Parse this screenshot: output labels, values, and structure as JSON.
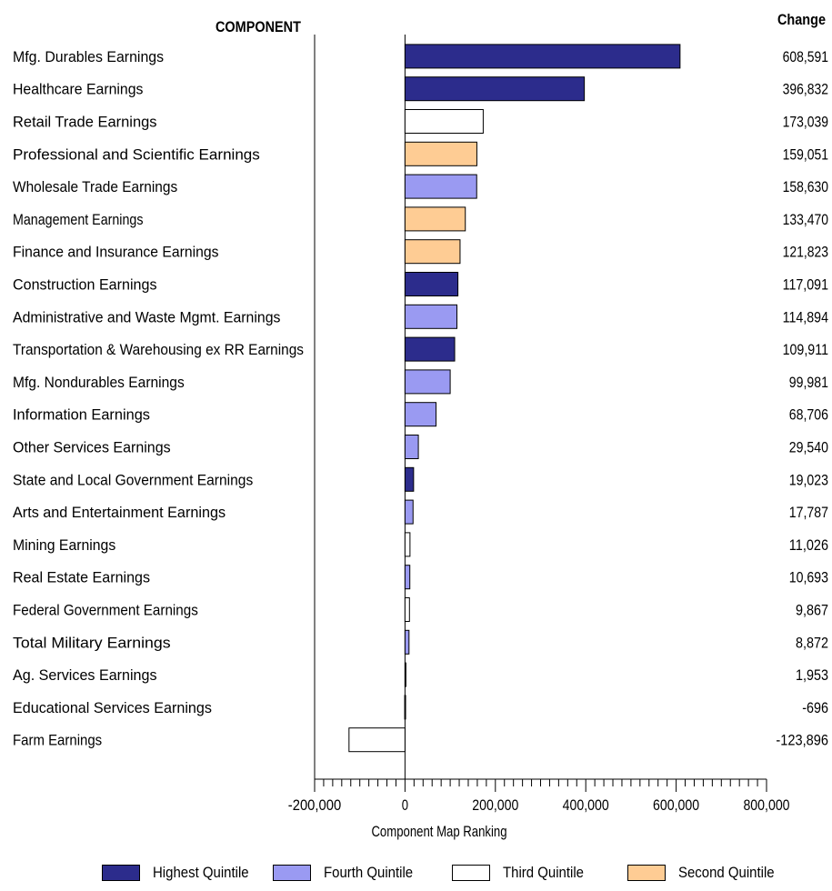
{
  "header": {
    "component_label": "COMPONENT",
    "change_label": "Change"
  },
  "chart_data": {
    "type": "bar",
    "orientation": "horizontal",
    "categories": [
      "Mfg. Durables Earnings",
      "Healthcare Earnings",
      "Retail Trade Earnings",
      "Professional and Scientific Earnings",
      "Wholesale Trade Earnings",
      "Management Earnings",
      "Finance and Insurance Earnings",
      "Construction Earnings",
      "Administrative and Waste Mgmt. Earnings",
      "Transportation & Warehousing ex RR Earnings",
      "Mfg. Nondurables Earnings",
      "Information Earnings",
      "Other Services Earnings",
      "State and Local Government Earnings",
      "Arts and Entertainment Earnings",
      "Mining Earnings",
      "Real Estate Earnings",
      "Federal Government Earnings",
      "Total Military Earnings",
      "Ag. Services Earnings",
      "Educational Services Earnings",
      "Farm Earnings"
    ],
    "values": [
      608591,
      396832,
      173039,
      159051,
      158630,
      133470,
      121823,
      117091,
      114894,
      109911,
      99981,
      68706,
      29540,
      19023,
      17787,
      11026,
      10693,
      9867,
      8872,
      1953,
      -696,
      -123896
    ],
    "value_labels": [
      "608,591",
      "396,832",
      "173,039",
      "159,051",
      "158,630",
      "133,470",
      "121,823",
      "117,091",
      "114,894",
      "109,911",
      "99,981",
      "68,706",
      "29,540",
      "19,023",
      "17,787",
      "11,026",
      "10,693",
      "9,867",
      "8,872",
      "1,953",
      "-696",
      "-123,896"
    ],
    "quintile": [
      "Highest Quintile",
      "Highest Quintile",
      "Third Quintile",
      "Second Quintile",
      "Fourth Quintile",
      "Second Quintile",
      "Second Quintile",
      "Highest Quintile",
      "Fourth Quintile",
      "Highest Quintile",
      "Fourth Quintile",
      "Fourth Quintile",
      "Fourth Quintile",
      "Highest Quintile",
      "Fourth Quintile",
      "Third Quintile",
      "Fourth Quintile",
      "Third Quintile",
      "Fourth Quintile",
      "Third Quintile",
      "Third Quintile",
      "Third Quintile"
    ],
    "xlabel": "Component Map Ranking",
    "xlim": [
      -200000,
      800000
    ],
    "xticks": [
      -200000,
      0,
      200000,
      400000,
      600000,
      800000
    ],
    "xtick_labels": [
      "-200,000",
      "0",
      "200,000",
      "400,000",
      "600,000",
      "800,000"
    ],
    "grid": false,
    "legend_position": "bottom",
    "legend": [
      {
        "label": "Highest Quintile",
        "color": "#2c2c8c"
      },
      {
        "label": "Fourth Quintile",
        "color": "#9a9af2"
      },
      {
        "label": "Third Quintile",
        "color": "#ffffff"
      },
      {
        "label": "Second Quintile",
        "color": "#fecc94"
      }
    ]
  }
}
